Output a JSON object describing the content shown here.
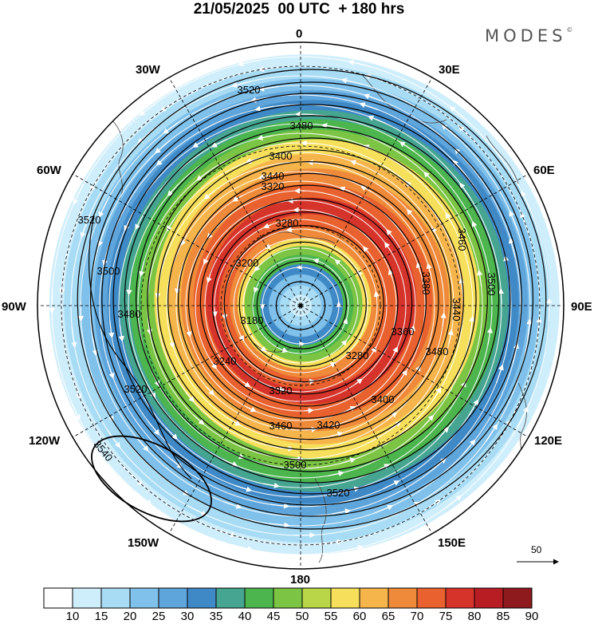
{
  "title": "21/05/2025  00 UTC  + 180 hrs",
  "brand": {
    "text": "MODES",
    "mark": "©"
  },
  "longitude_labels": {
    "lon_0": "0",
    "lon_30e": "30E",
    "lon_60e": "60E",
    "lon_90e": "90E",
    "lon_120e": "120E",
    "lon_150e": "150E",
    "lon_180": "180",
    "lon_150w": "150W",
    "lon_120w": "120W",
    "lon_90w": "90W",
    "lon_60w": "60W",
    "lon_30w": "30W"
  },
  "map": {
    "projection": "south-polar-stereographic",
    "shaded_field_colors": [
      "#ffffff",
      "#cfeefb",
      "#a8dcf5",
      "#7fc1ea",
      "#5ea5dc",
      "#3f89c6",
      "#45a591",
      "#4cb54d",
      "#7cc444",
      "#b8d648",
      "#f6df5a",
      "#f6b54b",
      "#ef8a3a",
      "#e8612e",
      "#d6342b",
      "#b81d24",
      "#8f1a1d"
    ],
    "contour_labels": [
      {
        "text": "3520"
      },
      {
        "text": "3480"
      },
      {
        "text": "3440"
      },
      {
        "text": "3400"
      },
      {
        "text": "3320"
      },
      {
        "text": "3280"
      },
      {
        "text": "3200"
      },
      {
        "text": "3180"
      },
      {
        "text": "3460"
      },
      {
        "text": "3380"
      },
      {
        "text": "3500"
      },
      {
        "text": "3440"
      },
      {
        "text": "3360"
      },
      {
        "text": "3280"
      },
      {
        "text": "3240"
      },
      {
        "text": "3480"
      },
      {
        "text": "3400"
      },
      {
        "text": "3320"
      },
      {
        "text": "3420"
      },
      {
        "text": "3460"
      },
      {
        "text": "3500"
      },
      {
        "text": "3520"
      },
      {
        "text": "3540"
      },
      {
        "text": "3520"
      },
      {
        "text": "3480"
      },
      {
        "text": "3500"
      },
      {
        "text": "3520"
      }
    ]
  },
  "colorbar": {
    "colors": [
      "#ffffff",
      "#cfeefb",
      "#a8dcf5",
      "#7fc1ea",
      "#5ea5dc",
      "#3f89c6",
      "#45a591",
      "#4cb54d",
      "#7cc444",
      "#b8d648",
      "#f6df5a",
      "#f6b54b",
      "#ef8a3a",
      "#e8612e",
      "#d6342b",
      "#b81d24",
      "#8f1a1d"
    ],
    "ticks": [
      "10",
      "15",
      "20",
      "25",
      "30",
      "35",
      "40",
      "45",
      "50",
      "55",
      "60",
      "65",
      "70",
      "75",
      "80",
      "85",
      "90"
    ]
  },
  "reference_vector": {
    "label": "50"
  }
}
